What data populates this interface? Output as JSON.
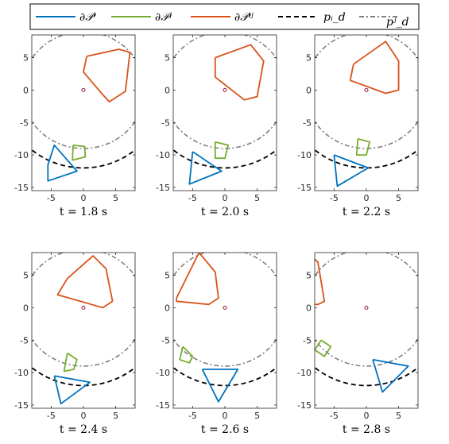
{
  "legend": [
    {
      "label": "∂𝒫ⁱ",
      "color": "#0072BD",
      "dash": "solid"
    },
    {
      "label": "∂𝒫ʲ",
      "color": "#77AC30",
      "dash": "solid"
    },
    {
      "label": "∂𝒫ⁱʲ",
      "color": "#D95319",
      "dash": "solid"
    },
    {
      "label": "pᵢ_d",
      "color": "#000000",
      "dash": "dashed"
    },
    {
      "label": "pʲ_d",
      "color": "#808080",
      "dash": "dashdot"
    }
  ],
  "chart_data": [
    {
      "type": "line",
      "caption": "t = 1.8 s",
      "xlim": [
        -8,
        8
      ],
      "ylim": [
        -15.5,
        8.5
      ],
      "xticks": [
        -5,
        0,
        5
      ],
      "yticks": [
        5,
        0,
        -5,
        -10,
        -15
      ],
      "grid": false,
      "series": {
        "P_i": [
          [
            -5.5,
            -11.5
          ],
          [
            -4.5,
            -8.5
          ],
          [
            -1,
            -12.5
          ],
          [
            -5.5,
            -14
          ],
          [
            -5.5,
            -11.5
          ]
        ],
        "P_j": [
          [
            -1.6,
            -8.5
          ],
          [
            0.2,
            -8.7
          ],
          [
            0.3,
            -10.3
          ],
          [
            -1.7,
            -10.8
          ],
          [
            -1.6,
            -8.5
          ]
        ],
        "P_ij": [
          [
            0.5,
            5.2
          ],
          [
            5.5,
            6.3
          ],
          [
            7.2,
            5.8
          ],
          [
            6.5,
            -0.2
          ],
          [
            4,
            -1.8
          ],
          [
            2.8,
            -0.5
          ],
          [
            0,
            2.8
          ],
          [
            0.5,
            5.2
          ]
        ],
        "p_d_i": {
          "cx": 0,
          "cy": 0,
          "rx": 12.5,
          "ry": 12
        },
        "p_d_j": {
          "cx": 0,
          "cy": 0,
          "rx": 9.5,
          "ry": 9
        },
        "origin": [
          0,
          0
        ]
      }
    },
    {
      "type": "line",
      "caption": "t = 2.0 s",
      "xlim": [
        -8,
        8
      ],
      "ylim": [
        -15.5,
        8.5
      ],
      "xticks": [
        -5,
        0,
        5
      ],
      "yticks": [
        5,
        0,
        -5,
        -10,
        -15
      ],
      "grid": false,
      "series": {
        "P_i": [
          [
            -5,
            -9.5
          ],
          [
            -0.5,
            -12.5
          ],
          [
            -5.5,
            -14.5
          ],
          [
            -5,
            -9.5
          ]
        ],
        "P_j": [
          [
            -1.5,
            -8
          ],
          [
            0.5,
            -8.5
          ],
          [
            0,
            -10.5
          ],
          [
            -1.5,
            -10.5
          ],
          [
            -1.5,
            -8
          ]
        ],
        "P_ij": [
          [
            -1.5,
            5
          ],
          [
            4,
            7
          ],
          [
            6,
            4.5
          ],
          [
            5,
            -1
          ],
          [
            3,
            -1.5
          ],
          [
            -1.5,
            2
          ],
          [
            -1.5,
            5
          ]
        ],
        "p_d_i": {
          "cx": 0,
          "cy": 0,
          "rx": 12.5,
          "ry": 12
        },
        "p_d_j": {
          "cx": 0,
          "cy": 0,
          "rx": 9.5,
          "ry": 9
        },
        "origin": [
          0,
          0
        ]
      }
    },
    {
      "type": "line",
      "caption": "t = 2.2 s",
      "xlim": [
        -8,
        8
      ],
      "ylim": [
        -15.5,
        8.5
      ],
      "xticks": [
        -5,
        0,
        5
      ],
      "yticks": [
        5,
        0,
        -5,
        -10,
        -15
      ],
      "grid": false,
      "series": {
        "P_i": [
          [
            -5,
            -10
          ],
          [
            0.3,
            -12
          ],
          [
            -4.5,
            -14.8
          ],
          [
            -5,
            -10
          ]
        ],
        "P_j": [
          [
            -1.3,
            -7.5
          ],
          [
            0.5,
            -8
          ],
          [
            0,
            -10
          ],
          [
            -1.5,
            -10
          ],
          [
            -1.3,
            -7.5
          ]
        ],
        "P_ij": [
          [
            -2,
            4
          ],
          [
            3,
            7.5
          ],
          [
            5,
            4.5
          ],
          [
            5,
            0
          ],
          [
            3,
            -0.5
          ],
          [
            -2.5,
            1.5
          ],
          [
            -2,
            4
          ]
        ],
        "p_d_i": {
          "cx": 0,
          "cy": 0,
          "rx": 12.5,
          "ry": 12
        },
        "p_d_j": {
          "cx": 0,
          "cy": 0,
          "rx": 9.5,
          "ry": 9
        },
        "origin": [
          0,
          0
        ]
      }
    },
    {
      "type": "line",
      "caption": "t = 2.4 s",
      "xlim": [
        -8,
        8
      ],
      "ylim": [
        -15.5,
        8.5
      ],
      "xticks": [
        -5,
        0,
        5
      ],
      "yticks": [
        5,
        0,
        -5,
        -10,
        -15
      ],
      "grid": false,
      "series": {
        "P_i": [
          [
            -4.5,
            -10.5
          ],
          [
            1,
            -11.5
          ],
          [
            -3.5,
            -14.8
          ],
          [
            -4.5,
            -10.5
          ]
        ],
        "P_j": [
          [
            -2.5,
            -7
          ],
          [
            -1,
            -8
          ],
          [
            -1.5,
            -9.5
          ],
          [
            -3,
            -9.8
          ],
          [
            -2.5,
            -7
          ]
        ],
        "P_ij": [
          [
            -2.5,
            4.5
          ],
          [
            1.5,
            8
          ],
          [
            3.5,
            6
          ],
          [
            4.5,
            1
          ],
          [
            3,
            0
          ],
          [
            -4,
            2
          ],
          [
            -2.5,
            4.5
          ]
        ],
        "p_d_i": {
          "cx": 0,
          "cy": 0,
          "rx": 12.5,
          "ry": 12
        },
        "p_d_j": {
          "cx": 0,
          "cy": 0,
          "rx": 9.5,
          "ry": 9
        },
        "origin": [
          0,
          0
        ]
      }
    },
    {
      "type": "line",
      "caption": "t = 2.6 s",
      "xlim": [
        -8,
        8
      ],
      "ylim": [
        -15.5,
        8.5
      ],
      "xticks": [
        -5,
        0,
        5
      ],
      "yticks": [
        5,
        0,
        -5,
        -10,
        -15
      ],
      "grid": false,
      "series": {
        "P_i": [
          [
            -3.5,
            -9.5
          ],
          [
            2,
            -9.5
          ],
          [
            -1,
            -14.5
          ],
          [
            -3.5,
            -9.5
          ]
        ],
        "P_j": [
          [
            -6.5,
            -6
          ],
          [
            -5,
            -7.5
          ],
          [
            -5.5,
            -8.5
          ],
          [
            -7,
            -8
          ],
          [
            -6.5,
            -6
          ]
        ],
        "P_ij": [
          [
            -7.5,
            1.5
          ],
          [
            -4,
            8.5
          ],
          [
            -1.5,
            5.5
          ],
          [
            -1,
            1.5
          ],
          [
            -2.5,
            0.5
          ],
          [
            -7.5,
            1
          ],
          [
            -7.5,
            1.5
          ]
        ],
        "p_d_i": {
          "cx": 0,
          "cy": 0,
          "rx": 12.5,
          "ry": 12
        },
        "p_d_j": {
          "cx": 0,
          "cy": 0,
          "rx": 9.5,
          "ry": 9
        },
        "origin": [
          0,
          0
        ]
      }
    },
    {
      "type": "line",
      "caption": "t = 2.8 s",
      "xlim": [
        -8,
        8
      ],
      "ylim": [
        -15.5,
        8.5
      ],
      "xticks": [
        -5,
        0,
        5
      ],
      "yticks": [
        5,
        0,
        -5,
        -10,
        -15
      ],
      "grid": false,
      "series": {
        "P_i": [
          [
            1,
            -8
          ],
          [
            6.5,
            -9
          ],
          [
            2.5,
            -13
          ],
          [
            1,
            -8
          ]
        ],
        "P_j": [
          [
            -7,
            -5
          ],
          [
            -5.5,
            -6
          ],
          [
            -6.5,
            -7.5
          ],
          [
            -8,
            -6.5
          ],
          [
            -7,
            -5
          ]
        ],
        "P_ij": [
          [
            -8,
            7.5
          ],
          [
            -7.5,
            7
          ],
          [
            -6.5,
            1
          ],
          [
            -7.5,
            0.5
          ],
          [
            -8,
            0.5
          ]
        ],
        "p_d_i": {
          "cx": 0,
          "cy": 0,
          "rx": 12.5,
          "ry": 12
        },
        "p_d_j": {
          "cx": 0,
          "cy": 0,
          "rx": 9.5,
          "ry": 9
        },
        "origin": [
          0,
          0
        ]
      }
    }
  ]
}
